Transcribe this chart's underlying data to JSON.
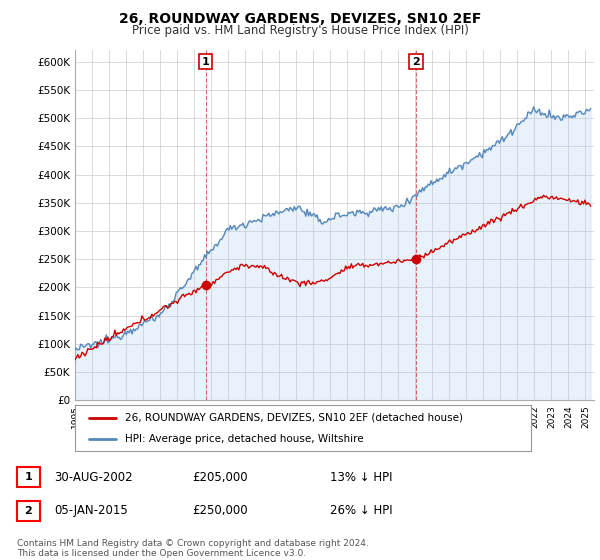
{
  "title": "26, ROUNDWAY GARDENS, DEVIZES, SN10 2EF",
  "subtitle": "Price paid vs. HM Land Registry's House Price Index (HPI)",
  "ylabel_ticks": [
    "£0",
    "£50K",
    "£100K",
    "£150K",
    "£200K",
    "£250K",
    "£300K",
    "£350K",
    "£400K",
    "£450K",
    "£500K",
    "£550K",
    "£600K"
  ],
  "ytick_vals": [
    0,
    50000,
    100000,
    150000,
    200000,
    250000,
    300000,
    350000,
    400000,
    450000,
    500000,
    550000,
    600000
  ],
  "ylim": [
    0,
    620000
  ],
  "xlim_start": 1995.0,
  "xlim_end": 2025.5,
  "sale1_date": 2002.67,
  "sale1_price": 205000,
  "sale1_label": "1",
  "sale2_date": 2015.04,
  "sale2_price": 250000,
  "sale2_label": "2",
  "legend_house": "26, ROUNDWAY GARDENS, DEVIZES, SN10 2EF (detached house)",
  "legend_hpi": "HPI: Average price, detached house, Wiltshire",
  "footer": "Contains HM Land Registry data © Crown copyright and database right 2024.\nThis data is licensed under the Open Government Licence v3.0.",
  "house_color": "#cc0000",
  "hpi_color": "#5588bb",
  "hpi_fill_color": "#aaccee",
  "background_color": "#ffffff",
  "grid_color": "#cccccc"
}
